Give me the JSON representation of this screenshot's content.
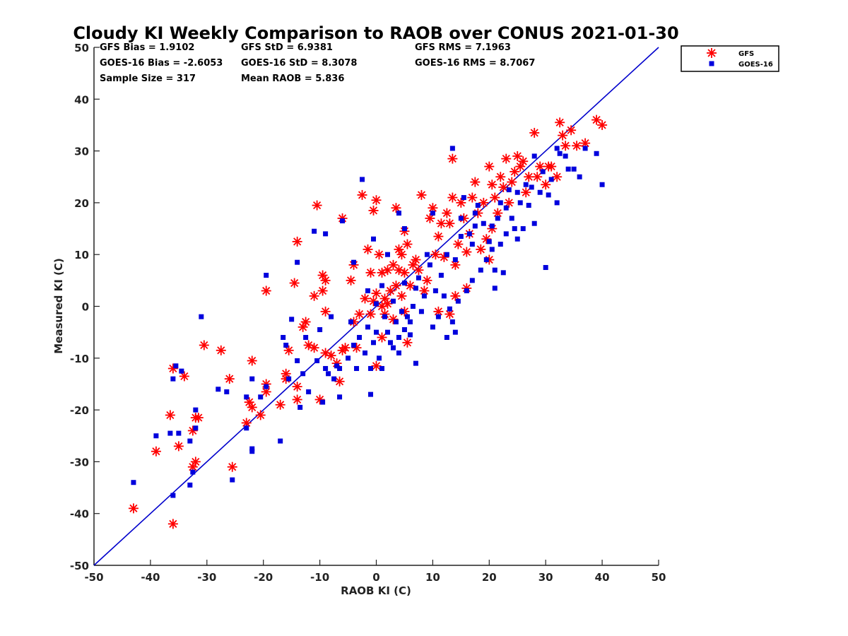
{
  "chart_data": {
    "type": "scatter",
    "title": "Cloudy KI Weekly Comparison to RAOB over CONUS 2021-01-30",
    "xlabel": "RAOB KI (C)",
    "ylabel": "Measured KI (C)",
    "xlim": [
      -50,
      50
    ],
    "ylim": [
      -50,
      50
    ],
    "xticks": [
      "-50",
      "-40",
      "-30",
      "-20",
      "-10",
      "0",
      "10",
      "20",
      "30",
      "40",
      "50"
    ],
    "yticks": [
      "-50",
      "-40",
      "-30",
      "-20",
      "-10",
      "0",
      "10",
      "20",
      "30",
      "40",
      "50"
    ],
    "grid": false,
    "legend_position": "outside-top-right",
    "reference_line": {
      "x": [
        -50,
        50
      ],
      "y": [
        -50,
        50
      ],
      "color": "#0000cc"
    },
    "stats": [
      "GFS Bias = 1.9102",
      "GFS StD = 6.9381",
      "GFS RMS = 7.1963",
      "GOES-16 Bias = -2.6053",
      "GOES-16 StD = 8.3078",
      "GOES-16 RMS = 8.7067",
      "Sample Size = 317",
      "Mean RAOB = 5.836"
    ],
    "series": [
      {
        "name": "GFS",
        "marker": "asterisk",
        "color": "#ff0000",
        "points": [
          [
            -43,
            -39
          ],
          [
            -39,
            -28
          ],
          [
            -36,
            -42
          ],
          [
            -36.5,
            -21
          ],
          [
            -36,
            -12
          ],
          [
            -35,
            -27
          ],
          [
            -34,
            -13.5
          ],
          [
            -32.5,
            -24
          ],
          [
            -32,
            -21.5
          ],
          [
            -31.5,
            -21.5
          ],
          [
            -32.5,
            -31
          ],
          [
            -32,
            -30
          ],
          [
            -30.5,
            -7.5
          ],
          [
            -27.5,
            -8.5
          ],
          [
            -26,
            -14
          ],
          [
            -25.5,
            -31
          ],
          [
            -22.5,
            -18.5
          ],
          [
            -22,
            -19.5
          ],
          [
            -23,
            -22.5
          ],
          [
            -22,
            -10.5
          ],
          [
            -20.5,
            -21
          ],
          [
            -19.5,
            -16.5
          ],
          [
            -19.5,
            -15
          ],
          [
            -19.5,
            3
          ],
          [
            -17,
            -19
          ],
          [
            -16,
            -13
          ],
          [
            -16,
            -14
          ],
          [
            -15.5,
            -8.5
          ],
          [
            -14.5,
            4.5
          ],
          [
            -14,
            12.5
          ],
          [
            -14,
            -15.5
          ],
          [
            -14,
            -18
          ],
          [
            -13,
            -4
          ],
          [
            -12.5,
            -3
          ],
          [
            -12,
            -7.5
          ],
          [
            -11,
            -8
          ],
          [
            -11,
            2
          ],
          [
            -10.5,
            19.5
          ],
          [
            -10,
            -18
          ],
          [
            -9.5,
            6
          ],
          [
            -9.5,
            3
          ],
          [
            -9,
            5
          ],
          [
            -9,
            -9
          ],
          [
            -9,
            -1
          ],
          [
            -8,
            -9.5
          ],
          [
            -7,
            -11
          ],
          [
            -6.5,
            -14.5
          ],
          [
            -6,
            -8.5
          ],
          [
            -6,
            17
          ],
          [
            -5.5,
            -8
          ],
          [
            -4.5,
            5
          ],
          [
            -4,
            -3
          ],
          [
            -4,
            8
          ],
          [
            -3.5,
            -8
          ],
          [
            -3,
            -1.5
          ],
          [
            -2.5,
            21.5
          ],
          [
            -2,
            1.5
          ],
          [
            -1.5,
            11
          ],
          [
            -1,
            -1.5
          ],
          [
            -1,
            6.5
          ],
          [
            -0.5,
            1
          ],
          [
            -0.5,
            18.5
          ],
          [
            0,
            -11.5
          ],
          [
            0,
            20.5
          ],
          [
            0,
            2.5
          ],
          [
            0.5,
            10
          ],
          [
            1,
            -6
          ],
          [
            1,
            6.5
          ],
          [
            1,
            0
          ],
          [
            1.5,
            1.5
          ],
          [
            1.5,
            -1.5
          ],
          [
            2,
            0.5
          ],
          [
            2,
            7
          ],
          [
            2.5,
            3
          ],
          [
            3,
            -2.5
          ],
          [
            3,
            8
          ],
          [
            3.5,
            4
          ],
          [
            3.5,
            19
          ],
          [
            4,
            7
          ],
          [
            4,
            11
          ],
          [
            4.5,
            10
          ],
          [
            4.5,
            2
          ],
          [
            5,
            -1
          ],
          [
            5,
            6.5
          ],
          [
            5,
            14.5
          ],
          [
            5.5,
            -7
          ],
          [
            5.5,
            12
          ],
          [
            6,
            4
          ],
          [
            6.5,
            8
          ],
          [
            7,
            9
          ],
          [
            7.5,
            7
          ],
          [
            8,
            21.5
          ],
          [
            8.5,
            3
          ],
          [
            9,
            5
          ],
          [
            9.5,
            17
          ],
          [
            10,
            19
          ],
          [
            10.5,
            10
          ],
          [
            11,
            -1
          ],
          [
            11,
            13.5
          ],
          [
            11.5,
            16
          ],
          [
            12,
            9.5
          ],
          [
            12.5,
            18
          ],
          [
            13,
            -1.5
          ],
          [
            13,
            16
          ],
          [
            13.5,
            21
          ],
          [
            13.5,
            28.5
          ],
          [
            14,
            2
          ],
          [
            14,
            8
          ],
          [
            14.5,
            12
          ],
          [
            15,
            20
          ],
          [
            15.5,
            17
          ],
          [
            16,
            3.5
          ],
          [
            16,
            10.5
          ],
          [
            16.5,
            14
          ],
          [
            17,
            21
          ],
          [
            17.5,
            24
          ],
          [
            18,
            18
          ],
          [
            18.5,
            11
          ],
          [
            19,
            20
          ],
          [
            19.5,
            13
          ],
          [
            20,
            9
          ],
          [
            20,
            27
          ],
          [
            20.5,
            15
          ],
          [
            21,
            21
          ],
          [
            21.5,
            18
          ],
          [
            22,
            25
          ],
          [
            22.5,
            23
          ],
          [
            23,
            28.5
          ],
          [
            23.5,
            20
          ],
          [
            24,
            24
          ],
          [
            24.5,
            26
          ],
          [
            25,
            29
          ],
          [
            25.5,
            27
          ],
          [
            26,
            28
          ],
          [
            26.5,
            22
          ],
          [
            27,
            25
          ],
          [
            28,
            33.5
          ],
          [
            28.5,
            25
          ],
          [
            29,
            27
          ],
          [
            30,
            23.5
          ],
          [
            30.5,
            27
          ],
          [
            31,
            27
          ],
          [
            32,
            25
          ],
          [
            32.5,
            35.5
          ],
          [
            33,
            33
          ],
          [
            33.5,
            31
          ],
          [
            34.5,
            34
          ],
          [
            35.5,
            31
          ],
          [
            37,
            31.5
          ],
          [
            39,
            36
          ],
          [
            40,
            35
          ],
          [
            20.5,
            23.5
          ]
        ]
      },
      {
        "name": "GOES-16",
        "marker": "square",
        "color": "#0000dd",
        "points": [
          [
            -43,
            -34
          ],
          [
            -39,
            -25
          ],
          [
            -36.5,
            -24.5
          ],
          [
            -36,
            -14
          ],
          [
            -36,
            -36.5
          ],
          [
            -35.5,
            -11.5
          ],
          [
            -35,
            -24.5
          ],
          [
            -34.5,
            -12.5
          ],
          [
            -33,
            -34.5
          ],
          [
            -33,
            -26
          ],
          [
            -32.5,
            -32
          ],
          [
            -32,
            -20
          ],
          [
            -32,
            -23.5
          ],
          [
            -31,
            -2
          ],
          [
            -28,
            -16
          ],
          [
            -26.5,
            -16.5
          ],
          [
            -25.5,
            -33.5
          ],
          [
            -23,
            -17.5
          ],
          [
            -23,
            -23.5
          ],
          [
            -22,
            -27.5
          ],
          [
            -22,
            -28
          ],
          [
            -22,
            -14
          ],
          [
            -20.5,
            -17.5
          ],
          [
            -19.5,
            6
          ],
          [
            -19.5,
            -15.5
          ],
          [
            -17,
            -26
          ],
          [
            -16.5,
            -6
          ],
          [
            -16,
            -7.5
          ],
          [
            -15.5,
            -14
          ],
          [
            -15,
            -2.5
          ],
          [
            -14,
            8.5
          ],
          [
            -14,
            -10.5
          ],
          [
            -13.5,
            -19.5
          ],
          [
            -13,
            -13
          ],
          [
            -12.5,
            -6
          ],
          [
            -12,
            -16.5
          ],
          [
            -11,
            14.5
          ],
          [
            -10.5,
            -10.5
          ],
          [
            -10,
            -4.5
          ],
          [
            -9.5,
            -18.5
          ],
          [
            -9,
            -12
          ],
          [
            -9,
            14
          ],
          [
            -8.5,
            -13
          ],
          [
            -8,
            -2
          ],
          [
            -7.5,
            -14
          ],
          [
            -7,
            -11.5
          ],
          [
            -6.5,
            -12
          ],
          [
            -6.5,
            -17.5
          ],
          [
            -6,
            16.5
          ],
          [
            -5,
            -10
          ],
          [
            -4.5,
            -3
          ],
          [
            -4,
            -7.5
          ],
          [
            -4,
            8.5
          ],
          [
            -3.5,
            -12
          ],
          [
            -3,
            -6
          ],
          [
            -2.5,
            24.5
          ],
          [
            -2,
            -9
          ],
          [
            -1.5,
            -4
          ],
          [
            -1.5,
            3
          ],
          [
            -1,
            -17
          ],
          [
            -1,
            -12
          ],
          [
            -0.5,
            -7
          ],
          [
            -0.5,
            13
          ],
          [
            0,
            -5
          ],
          [
            0,
            0.5
          ],
          [
            0.5,
            -10
          ],
          [
            1,
            -12
          ],
          [
            1,
            4
          ],
          [
            1.5,
            -2
          ],
          [
            2,
            -5
          ],
          [
            2,
            10
          ],
          [
            2.5,
            -7
          ],
          [
            3,
            -8
          ],
          [
            3,
            1
          ],
          [
            3.5,
            -3
          ],
          [
            4,
            -6
          ],
          [
            4,
            -9
          ],
          [
            4,
            18
          ],
          [
            4.5,
            -1
          ],
          [
            5,
            -4.5
          ],
          [
            5,
            4.5
          ],
          [
            5,
            15
          ],
          [
            5.5,
            -2
          ],
          [
            6,
            -3
          ],
          [
            6,
            -5.5
          ],
          [
            6.5,
            0
          ],
          [
            7,
            -11
          ],
          [
            7,
            3.5
          ],
          [
            7.5,
            5.5
          ],
          [
            8,
            -1
          ],
          [
            8.5,
            2
          ],
          [
            9,
            10
          ],
          [
            9.5,
            8
          ],
          [
            10,
            18
          ],
          [
            10,
            -4
          ],
          [
            10.5,
            3
          ],
          [
            11,
            -2
          ],
          [
            11.5,
            6
          ],
          [
            12,
            2
          ],
          [
            12.5,
            10
          ],
          [
            12.5,
            -6
          ],
          [
            13,
            -0.5
          ],
          [
            13.5,
            30.5
          ],
          [
            13.5,
            -3
          ],
          [
            14,
            -5
          ],
          [
            14,
            9
          ],
          [
            14.5,
            1
          ],
          [
            15,
            17
          ],
          [
            15.5,
            21
          ],
          [
            16,
            3
          ],
          [
            16.5,
            14
          ],
          [
            17,
            12
          ],
          [
            17,
            5
          ],
          [
            17.5,
            18
          ],
          [
            18,
            19.5
          ],
          [
            18.5,
            7
          ],
          [
            19,
            16
          ],
          [
            19.5,
            9
          ],
          [
            20,
            12.5
          ],
          [
            20.5,
            11
          ],
          [
            20.5,
            15.5
          ],
          [
            21,
            3.5
          ],
          [
            21,
            7
          ],
          [
            21.5,
            17
          ],
          [
            22,
            12
          ],
          [
            22,
            20
          ],
          [
            22.5,
            6.5
          ],
          [
            23,
            19
          ],
          [
            23,
            14
          ],
          [
            23.5,
            22.5
          ],
          [
            24,
            17
          ],
          [
            24.5,
            15
          ],
          [
            25,
            22
          ],
          [
            25,
            13
          ],
          [
            25.5,
            20
          ],
          [
            26,
            15
          ],
          [
            26.5,
            23.5
          ],
          [
            27,
            19.5
          ],
          [
            27.5,
            23
          ],
          [
            28,
            29
          ],
          [
            28,
            16
          ],
          [
            29,
            22
          ],
          [
            29.5,
            26
          ],
          [
            30,
            7.5
          ],
          [
            30.5,
            21.5
          ],
          [
            31,
            24.5
          ],
          [
            32,
            20
          ],
          [
            32.5,
            29.5
          ],
          [
            33.5,
            29
          ],
          [
            34,
            26.5
          ],
          [
            35,
            26.5
          ],
          [
            36,
            25
          ],
          [
            37,
            30.5
          ],
          [
            39,
            29.5
          ],
          [
            40,
            23.5
          ],
          [
            32,
            30.5
          ],
          [
            15,
            13.5
          ],
          [
            17.5,
            15.5
          ]
        ]
      }
    ]
  }
}
